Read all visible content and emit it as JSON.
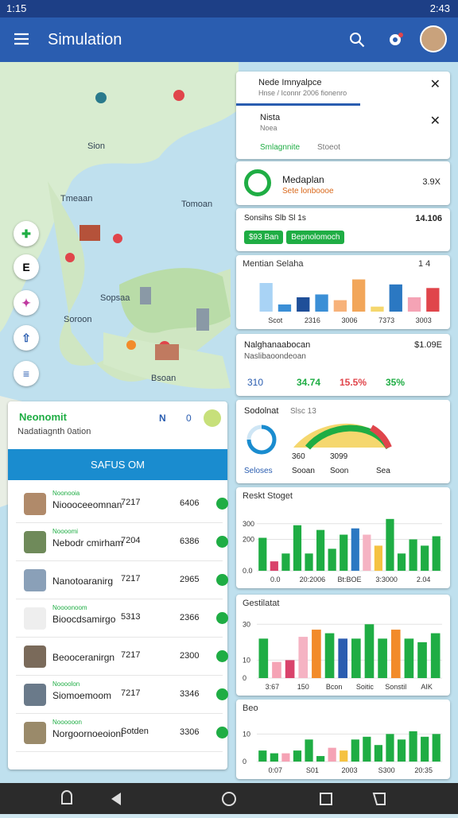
{
  "status_bar": {
    "time": "1:15",
    "clock": "2:43"
  },
  "app_bar": {
    "title": "Simulation"
  },
  "map": {
    "labels": [
      "Sion",
      "Tmeaan",
      "Tomoan",
      "Sopsaa",
      "Soroon",
      "Bsoan"
    ]
  },
  "side_buttons": [
    "E"
  ],
  "left_panel": {
    "title": "Neonomit",
    "subtitle": "Nadatiagnth 0ation",
    "badges": [
      "N",
      "0"
    ],
    "button": "SAFUS OM",
    "items": [
      {
        "tag": "Noonooia",
        "name": "Nioooceeomnan",
        "code": "7217",
        "value": "6406"
      },
      {
        "tag": "Noooomi",
        "name": "Nebodr cmirham",
        "code": "7204",
        "value": "6386"
      },
      {
        "name": "Nanotoaranirg",
        "code": "7217",
        "value": "2965"
      },
      {
        "tag": "Noooonoom",
        "name": "Bioocdsamirgo",
        "code": "5313",
        "value": "2366"
      },
      {
        "name": "Beooceranirgn",
        "code": "7217",
        "value": "2300"
      },
      {
        "tag": "Noooolon",
        "name": "Siomoemoom",
        "code": "7217",
        "value": "3346"
      },
      {
        "tag": "Noooooon",
        "name": "Norgoornoeoionl",
        "code": "Sotden",
        "value": "3306"
      }
    ]
  },
  "notifications": [
    {
      "title": "Nede Imnyalpce",
      "subtitle": "Hnse / Iconnr 2006 fionenro"
    },
    {
      "title": "Nista",
      "subtitle": "Noea"
    }
  ],
  "search": {
    "label": "Smlagnnite",
    "placeholder": "Stoeot"
  },
  "featured": {
    "title": "Medaplan",
    "subtitle": "Sete lonboooe",
    "value": "3.9X"
  },
  "stats": {
    "title": "Sonsihs Slb Sl 1s",
    "value": "14.106",
    "pills": [
      "$93 Ban",
      "Bepnolomoch"
    ]
  },
  "summary": {
    "title": "Nalghanaabocan",
    "value": "$1.09E",
    "subtitle": "Naslibaoondeoan",
    "metrics": [
      "310",
      "34.74",
      "15.5%",
      "35%"
    ]
  },
  "gauge": {
    "title": "Sodolnat",
    "tag": "Slsc 13",
    "labels": [
      "360",
      "3099",
      "Seloses",
      "Sooan",
      "Soon",
      "Sea"
    ]
  },
  "charts": [
    {
      "type": "bar",
      "title": "Mentian Selaha",
      "badge": "1 4",
      "ylim": [
        0,
        50
      ],
      "values": [
        40,
        10,
        20,
        24,
        16,
        45,
        7,
        38,
        20,
        33
      ],
      "colors": [
        "#a9d3f5",
        "#3b8fd6",
        "#1f4f99",
        "#3b8fd6",
        "#f7b27a",
        "#f2a65a",
        "#f5d76e",
        "#2b78c2",
        "#f5a3b5",
        "#e0454b"
      ],
      "x_labels": [
        "Scot",
        "2316",
        "3006",
        "7373",
        "3003"
      ]
    },
    {
      "type": "bar",
      "title": "Reskt Stoget",
      "ylim": [
        0,
        400
      ],
      "yticks": [
        {
          "value": 0,
          "label": "0.0"
        },
        200,
        300
      ],
      "values": [
        210,
        60,
        110,
        290,
        110,
        260,
        140,
        230,
        270,
        230,
        160,
        330,
        110,
        200,
        160,
        220
      ],
      "colors": [
        "#1fad44",
        "#d9436b",
        "#1fad44",
        "#1fad44",
        "#1fad44",
        "#1fad44",
        "#1fad44",
        "#1fad44",
        "#2b78c2",
        "#f5b3c3",
        "#f5c242",
        "#1fad44",
        "#1fad44",
        "#1fad44",
        "#1fad44",
        "#1fad44"
      ],
      "x_labels": [
        "0.0",
        "20:2006",
        "Bt:BOE",
        "3:3000",
        "2.04"
      ]
    },
    {
      "type": "bar",
      "title": "Gestilatat",
      "ylim": [
        0,
        35
      ],
      "yticks": [
        0,
        10,
        30
      ],
      "values": [
        22,
        9,
        10,
        23,
        27,
        25,
        22,
        22,
        30,
        22,
        27,
        22,
        20,
        25
      ],
      "colors": [
        "#1fad44",
        "#f5a3b5",
        "#d9436b",
        "#f5b3c3",
        "#f28b2a",
        "#1fad44",
        "#2b5db0",
        "#1fad44",
        "#1fad44",
        "#1fad44",
        "#f28b2a",
        "#1fad44",
        "#1fad44",
        "#1fad44"
      ],
      "x_labels": [
        "3:67",
        "150",
        "Bcon",
        "Soitic",
        "Sonstil",
        "AIK"
      ]
    },
    {
      "type": "bar",
      "title": "Beo",
      "ylim": [
        0,
        15
      ],
      "yticks": [
        0,
        10
      ],
      "values": [
        4,
        3,
        3,
        4,
        8,
        2,
        5,
        4,
        8,
        9,
        6,
        10,
        8,
        11,
        9,
        10
      ],
      "colors": [
        "#1fad44",
        "#1fad44",
        "#f5a3b5",
        "#1fad44",
        "#1fad44",
        "#1fad44",
        "#f5a3b5",
        "#f5c242",
        "#1fad44",
        "#1fad44",
        "#1fad44",
        "#1fad44",
        "#1fad44",
        "#1fad44",
        "#1fad44",
        "#1fad44"
      ],
      "x_labels": [
        "0:07",
        "S01",
        "2003",
        "S300",
        "20:35"
      ]
    }
  ]
}
